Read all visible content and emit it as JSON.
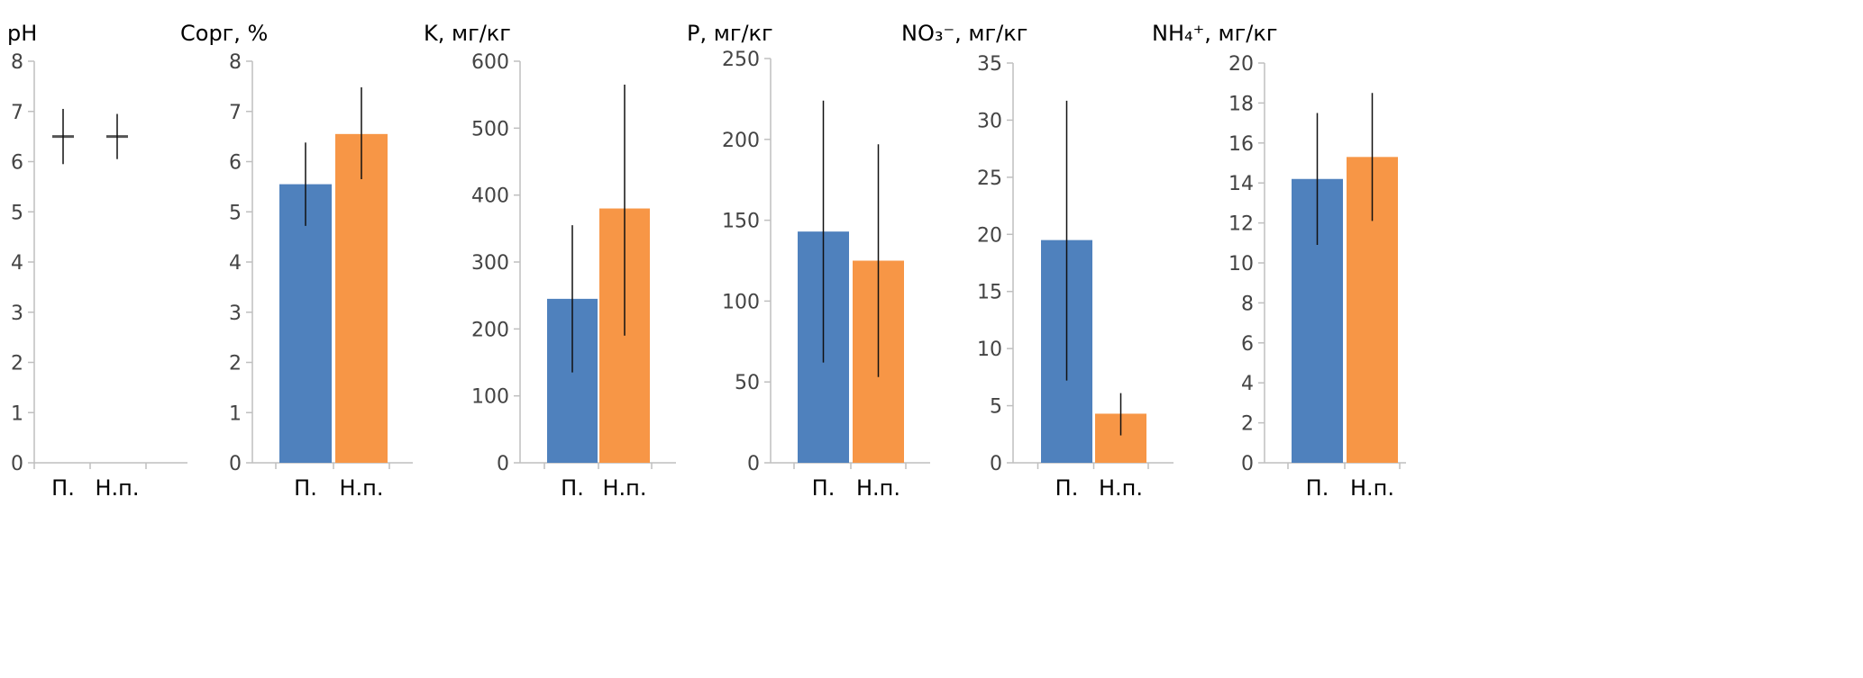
{
  "chart_data": [
    {
      "type": "bar",
      "title": "pH",
      "categories": [
        "П.",
        "Н.п."
      ],
      "values": [
        6.5,
        6.5
      ],
      "errors": [
        [
          5.95,
          7.05
        ],
        [
          6.05,
          6.95
        ]
      ],
      "ylim": [
        0,
        8
      ],
      "ystep": 1,
      "markers_only": true,
      "colors": [
        "#4f81bd",
        "#f79646"
      ]
    },
    {
      "type": "bar",
      "title": "Cорг, %",
      "categories": [
        "П.",
        "Н.п."
      ],
      "values": [
        5.55,
        6.55
      ],
      "errors": [
        [
          4.72,
          6.38
        ],
        [
          5.65,
          7.48
        ]
      ],
      "ylim": [
        0,
        8
      ],
      "ystep": 1,
      "colors": [
        "#4f81bd",
        "#f79646"
      ]
    },
    {
      "type": "bar",
      "title": "K, мг/кг",
      "categories": [
        "П.",
        "Н.п."
      ],
      "values": [
        245,
        380
      ],
      "errors": [
        [
          135,
          355
        ],
        [
          190,
          565
        ]
      ],
      "ylim": [
        0,
        600
      ],
      "ystep": 100,
      "colors": [
        "#4f81bd",
        "#f79646"
      ]
    },
    {
      "type": "bar",
      "title": "P, мг/кг",
      "categories": [
        "П.",
        "Н.п."
      ],
      "values": [
        143,
        125
      ],
      "errors": [
        [
          62,
          224
        ],
        [
          53,
          197
        ]
      ],
      "ylim": [
        0,
        250
      ],
      "ystep": 50,
      "colors": [
        "#4f81bd",
        "#f79646"
      ]
    },
    {
      "type": "bar",
      "title": "NO₃⁻, мг/кг",
      "categories": [
        "П.",
        "Н.п."
      ],
      "values": [
        19.5,
        4.3
      ],
      "errors": [
        [
          7.2,
          31.7
        ],
        [
          2.4,
          6.1
        ]
      ],
      "ylim": [
        0,
        35
      ],
      "ystep": 5,
      "colors": [
        "#4f81bd",
        "#f79646"
      ]
    },
    {
      "type": "bar",
      "title": "NH₄⁺, мг/кг",
      "categories": [
        "П.",
        "Н.п."
      ],
      "values": [
        14.2,
        15.3
      ],
      "errors": [
        [
          10.9,
          17.5
        ],
        [
          12.1,
          18.5
        ]
      ],
      "ylim": [
        0,
        20
      ],
      "ystep": 2,
      "colors": [
        "#4f81bd",
        "#f79646"
      ]
    }
  ]
}
